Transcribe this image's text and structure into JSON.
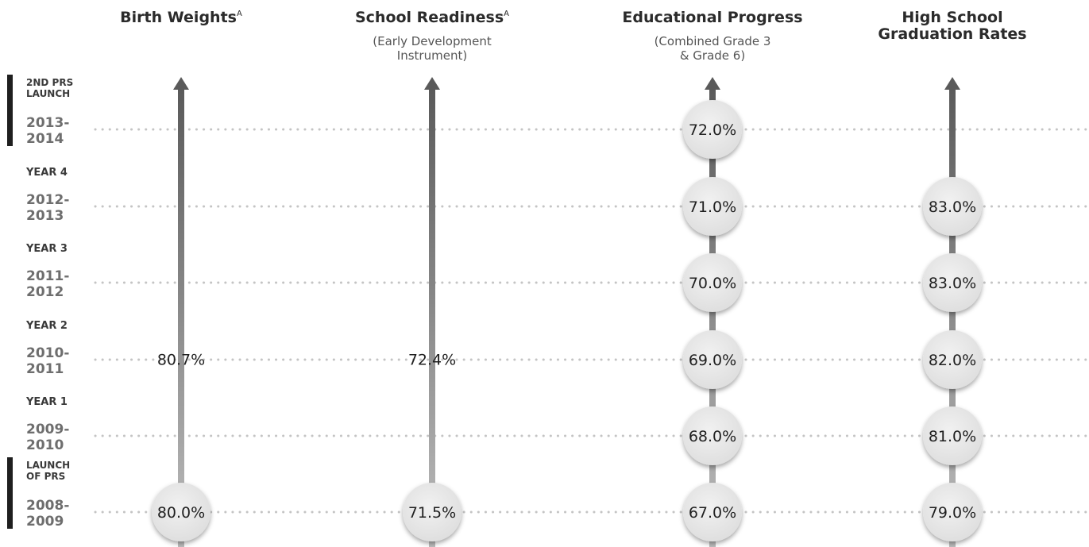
{
  "chart_data": {
    "type": "table",
    "columns": [
      {
        "title": "Birth Weights",
        "title_sup": "A",
        "subtitle": []
      },
      {
        "title": "School Readiness",
        "title_sup": "A",
        "subtitle": [
          "(Early Development",
          "Instrument)"
        ]
      },
      {
        "title": "Educational Progress",
        "title_sup": "",
        "subtitle": [
          "(Combined Grade 3",
          "& Grade 6)"
        ]
      },
      {
        "title_lines": [
          "High School",
          "Graduation Rates"
        ],
        "title_sup": "",
        "subtitle": []
      }
    ],
    "rows": [
      {
        "label": [
          "2ND PRS",
          "LAUNCH"
        ],
        "years": [
          "2013-",
          "2014"
        ],
        "marked": true
      },
      {
        "label": [
          "YEAR 4"
        ],
        "years": [
          "2012-",
          "2013"
        ],
        "marked": false
      },
      {
        "label": [
          "YEAR 3"
        ],
        "years": [
          "2011-",
          "2012"
        ],
        "marked": false
      },
      {
        "label": [
          "YEAR 2"
        ],
        "years": [
          "2010-",
          "2011"
        ],
        "marked": false
      },
      {
        "label": [
          "YEAR 1"
        ],
        "years": [
          "2009-",
          "2010"
        ],
        "marked": false
      },
      {
        "label": [
          "LAUNCH",
          "OF PRS"
        ],
        "years": [
          "2008-",
          "2009"
        ],
        "marked": true
      }
    ],
    "series": [
      {
        "values": [
          {
            "text": "80.0%",
            "from_row": 5,
            "to_row": 5
          },
          {
            "text": "80.7%",
            "from_row": 2,
            "to_row": 4
          }
        ]
      },
      {
        "values": [
          {
            "text": "71.5%",
            "from_row": 5,
            "to_row": 5
          },
          {
            "text": "72.4%",
            "from_row": 2,
            "to_row": 4
          }
        ]
      },
      {
        "values": [
          {
            "text": "67.0%",
            "from_row": 5,
            "to_row": 5
          },
          {
            "text": "68.0%",
            "from_row": 4,
            "to_row": 4
          },
          {
            "text": "69.0%",
            "from_row": 3,
            "to_row": 3
          },
          {
            "text": "70.0%",
            "from_row": 2,
            "to_row": 2
          },
          {
            "text": "71.0%",
            "from_row": 1,
            "to_row": 1
          },
          {
            "text": "72.0%",
            "from_row": 0,
            "to_row": 0
          }
        ]
      },
      {
        "values": [
          {
            "text": "79.0%",
            "from_row": 5,
            "to_row": 5
          },
          {
            "text": "81.0%",
            "from_row": 4,
            "to_row": 4
          },
          {
            "text": "82.0%",
            "from_row": 3,
            "to_row": 3
          },
          {
            "text": "83.0%",
            "from_row": 2,
            "to_row": 2
          },
          {
            "text": "83.0%",
            "from_row": 1,
            "to_row": 1
          }
        ]
      }
    ],
    "colors": {
      "bubble": "#e8e8e8",
      "arrow": "#7a7a7a",
      "dots": "#c4c4c4",
      "marker": "#1f1f1f"
    }
  }
}
